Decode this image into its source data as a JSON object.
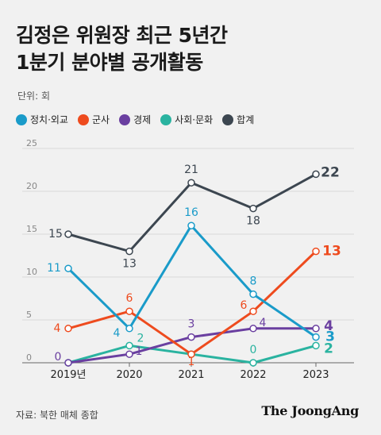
{
  "title_line1": "김정은 위원장 최근 5년간",
  "title_line2": "1분기 분야별 공개활동",
  "unit": "단위: 회",
  "source": "자료: 북한 매체 종합",
  "logo": "The JoongAng",
  "chart_data": {
    "type": "line",
    "x": [
      "2019년",
      "2020",
      "2021",
      "2022",
      "2023"
    ],
    "ylim": [
      0,
      25
    ],
    "yticks": [
      0,
      5,
      10,
      15,
      20,
      25
    ],
    "grid": true,
    "legend_position": "top-left",
    "series": [
      {
        "name": "정치·외교",
        "color": "#1a9bc9",
        "values": [
          11,
          4,
          16,
          8,
          3
        ]
      },
      {
        "name": "군사",
        "color": "#ee4b1e",
        "values": [
          4,
          6,
          1,
          6,
          13
        ]
      },
      {
        "name": "경제",
        "color": "#6a3fa0",
        "values": [
          0,
          1,
          3,
          4,
          4
        ]
      },
      {
        "name": "사회·문화",
        "color": "#2ab3a0",
        "values": [
          0,
          2,
          1,
          0,
          2
        ]
      },
      {
        "name": "합계",
        "color": "#3c4650",
        "values": [
          15,
          13,
          21,
          18,
          22
        ]
      }
    ]
  }
}
